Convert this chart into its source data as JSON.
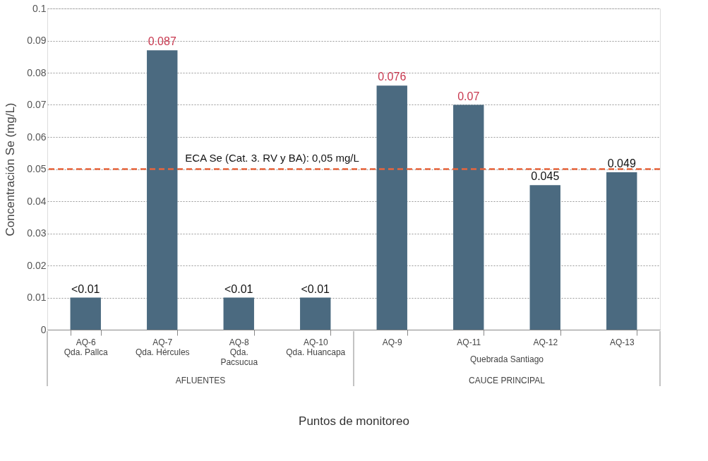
{
  "chart_data": {
    "type": "bar",
    "xlabel": "Puntos de monitoreo",
    "ylabel": "Concentración Se (mg/L)",
    "categories": [
      "AQ-6\nQda. Pallca",
      "AQ-7\nQda. Hércules",
      "AQ-8\nQda.\nPacsucua",
      "AQ-10\nQda. Huancapa",
      "AQ-9",
      "AQ-11",
      "AQ-12",
      "AQ-13"
    ],
    "values": [
      0.01,
      0.087,
      0.01,
      0.01,
      0.076,
      0.07,
      0.045,
      0.049
    ],
    "value_labels": [
      "<0.01",
      "0.087",
      "<0.01",
      "<0.01",
      "0.076",
      "0.07",
      "0.045",
      "0.049"
    ],
    "color": "#4b6a80",
    "ylim": [
      0,
      0.1
    ],
    "yticks": [
      0,
      0.01,
      0.02,
      0.03,
      0.04,
      0.05,
      0.06,
      0.07,
      0.08,
      0.09,
      0.1
    ],
    "grid": "y",
    "ref_lines": [
      {
        "axis": "y",
        "value": 0.05,
        "label": "ECA Se (Cat. 3. RV y BA): 0,05 mg/L",
        "color": "#e8663d",
        "line_style": "dashed"
      }
    ],
    "annotations": [
      "Quebrada Santiago",
      "AFLUENTES",
      "CAUCE PRINCIPAL"
    ]
  }
}
